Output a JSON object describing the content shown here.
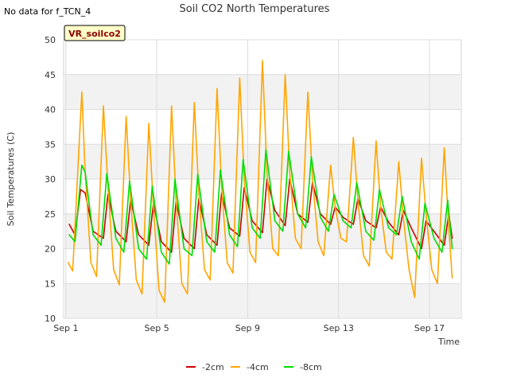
{
  "note_text": "No data for f_TCN_4",
  "badge_label": "VR_soilco2",
  "chart_data": {
    "type": "line",
    "title": "Soil CO2 North Temperatures",
    "xlabel": "Time",
    "ylabel": "Soil Temperatures (C)",
    "x_range_days": [
      0.9,
      18.4
    ],
    "ylim": [
      10,
      50
    ],
    "y_ticks": [
      10,
      15,
      20,
      25,
      30,
      35,
      40,
      45,
      50
    ],
    "x_ticks": [
      {
        "label": "Sep 1",
        "day": 1
      },
      {
        "label": "Sep 5",
        "day": 5
      },
      {
        "label": "Sep 9",
        "day": 9
      },
      {
        "label": "Sep 13",
        "day": 13
      },
      {
        "label": "Sep 17",
        "day": 17
      }
    ],
    "grid": true,
    "legend_position": "bottom",
    "series": [
      {
        "name": "-2cm",
        "color": "#cc0000",
        "x": [
          1.15,
          1.4,
          1.65,
          1.85,
          2.2,
          2.65,
          2.85,
          3.2,
          3.65,
          3.85,
          4.2,
          4.65,
          4.85,
          5.2,
          5.65,
          5.85,
          6.2,
          6.65,
          6.85,
          7.2,
          7.65,
          7.85,
          8.2,
          8.65,
          8.85,
          9.2,
          9.65,
          9.85,
          10.2,
          10.65,
          10.85,
          11.2,
          11.65,
          11.85,
          12.2,
          12.65,
          12.85,
          13.2,
          13.65,
          13.85,
          14.2,
          14.65,
          14.85,
          15.2,
          15.65,
          15.85,
          16.2,
          16.65,
          16.85,
          17.2,
          17.65,
          17.85,
          18.0
        ],
        "y": [
          23.5,
          22.0,
          28.5,
          28.0,
          22.5,
          21.5,
          27.8,
          22.5,
          21.0,
          27.0,
          22.0,
          20.5,
          26.5,
          21.0,
          19.5,
          26.8,
          21.5,
          20.0,
          27.2,
          22.0,
          20.5,
          28.0,
          23.0,
          21.8,
          28.8,
          24.0,
          22.3,
          30.0,
          25.5,
          23.3,
          30.0,
          25.0,
          23.8,
          29.5,
          25.0,
          23.5,
          26.0,
          24.5,
          23.5,
          27.2,
          24.0,
          23.0,
          26.0,
          23.8,
          22.0,
          25.5,
          23.0,
          20.0,
          24.0,
          22.5,
          20.5,
          25.0,
          21.5
        ]
      },
      {
        "name": "-4cm",
        "color": "#ffa500",
        "x": [
          1.1,
          1.3,
          1.7,
          1.85,
          2.1,
          2.35,
          2.65,
          2.85,
          3.1,
          3.35,
          3.65,
          3.85,
          4.1,
          4.35,
          4.65,
          4.85,
          5.1,
          5.35,
          5.65,
          5.85,
          6.1,
          6.35,
          6.65,
          6.85,
          7.1,
          7.35,
          7.65,
          7.85,
          8.1,
          8.35,
          8.65,
          8.85,
          9.1,
          9.35,
          9.65,
          9.85,
          10.1,
          10.35,
          10.65,
          10.85,
          11.1,
          11.35,
          11.65,
          11.85,
          12.1,
          12.35,
          12.65,
          12.85,
          13.1,
          13.35,
          13.65,
          13.85,
          14.1,
          14.35,
          14.65,
          14.85,
          15.1,
          15.35,
          15.65,
          15.85,
          16.1,
          16.35,
          16.65,
          16.85,
          17.1,
          17.35,
          17.65,
          17.85,
          18.0
        ],
        "y": [
          18.0,
          16.8,
          42.5,
          31.0,
          18.0,
          16.0,
          40.5,
          29.0,
          17.0,
          14.8,
          39.0,
          27.0,
          15.5,
          13.5,
          38.0,
          26.0,
          14.0,
          12.3,
          40.5,
          27.0,
          15.0,
          13.5,
          41.0,
          28.0,
          17.0,
          15.5,
          43.0,
          29.0,
          18.0,
          16.5,
          44.5,
          30.0,
          19.5,
          18.0,
          47.0,
          31.0,
          20.0,
          19.0,
          45.0,
          31.0,
          21.5,
          20.0,
          42.5,
          30.0,
          21.0,
          19.0,
          32.0,
          26.0,
          21.5,
          21.0,
          36.0,
          27.0,
          19.0,
          17.5,
          35.5,
          26.0,
          19.5,
          18.5,
          32.5,
          24.5,
          17.0,
          13.0,
          33.0,
          25.0,
          17.0,
          15.0,
          34.5,
          23.0,
          15.8
        ]
      },
      {
        "name": "-8cm",
        "color": "#00dd00",
        "x": [
          1.15,
          1.4,
          1.7,
          1.85,
          2.2,
          2.55,
          2.8,
          3.2,
          3.55,
          3.8,
          4.2,
          4.55,
          4.8,
          5.2,
          5.55,
          5.8,
          6.2,
          6.55,
          6.8,
          7.2,
          7.55,
          7.8,
          8.2,
          8.55,
          8.8,
          9.2,
          9.55,
          9.8,
          10.2,
          10.55,
          10.8,
          11.2,
          11.55,
          11.8,
          12.2,
          12.55,
          12.8,
          13.2,
          13.55,
          13.8,
          14.2,
          14.55,
          14.8,
          15.2,
          15.55,
          15.8,
          16.2,
          16.55,
          16.8,
          17.2,
          17.55,
          17.8,
          18.0
        ],
        "y": [
          22.0,
          21.0,
          32.0,
          31.0,
          22.0,
          20.5,
          30.8,
          21.5,
          19.5,
          29.7,
          20.0,
          18.5,
          29.0,
          19.5,
          17.8,
          30.0,
          20.0,
          19.0,
          30.7,
          21.0,
          19.5,
          31.3,
          22.0,
          20.3,
          32.8,
          23.0,
          21.5,
          34.2,
          24.0,
          22.5,
          34.0,
          25.0,
          23.0,
          33.2,
          24.5,
          22.5,
          27.8,
          24.0,
          23.0,
          29.5,
          22.5,
          21.2,
          28.5,
          23.0,
          22.0,
          27.5,
          21.0,
          18.5,
          26.5,
          21.5,
          19.5,
          27.0,
          20.0
        ]
      }
    ]
  }
}
